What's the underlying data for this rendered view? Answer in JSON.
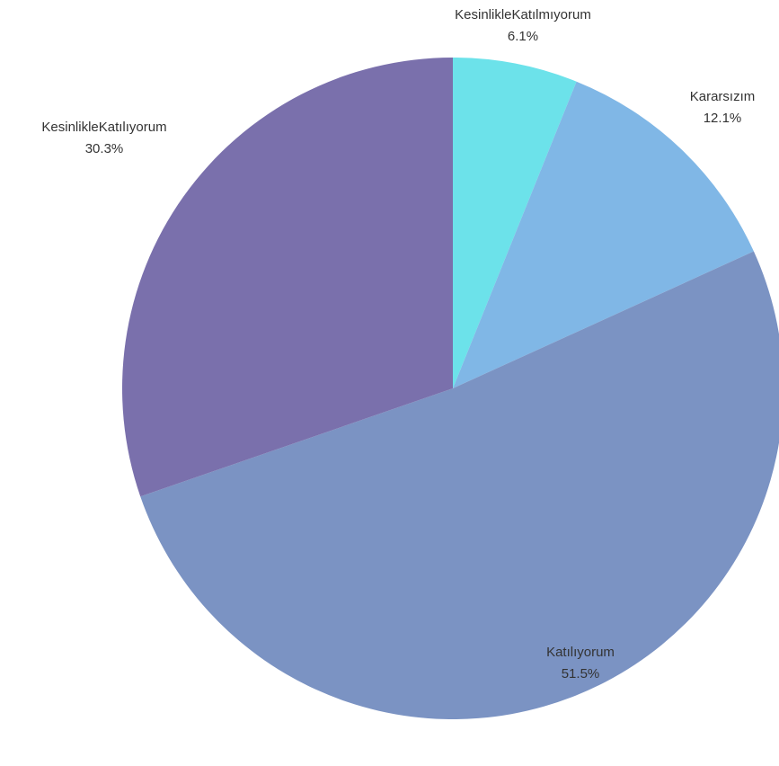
{
  "chart_data": {
    "type": "pie",
    "slices": [
      {
        "label": "KesinlikleKatılmıyorum",
        "value": 6.1,
        "value_label": "6.1%",
        "color": "#6ce2ea"
      },
      {
        "label": "Kararsızım",
        "value": 12.1,
        "value_label": "12.1%",
        "color": "#80b7e6"
      },
      {
        "label": "Katılıyorum",
        "value": 51.5,
        "value_label": "51.5%",
        "color": "#7b93c3"
      },
      {
        "label": "KesinlikleKatılıyorum",
        "value": 30.3,
        "value_label": "30.3%",
        "color": "#7a70ac"
      }
    ],
    "start_direction": "top",
    "order": "clockwise",
    "legend": "none"
  }
}
